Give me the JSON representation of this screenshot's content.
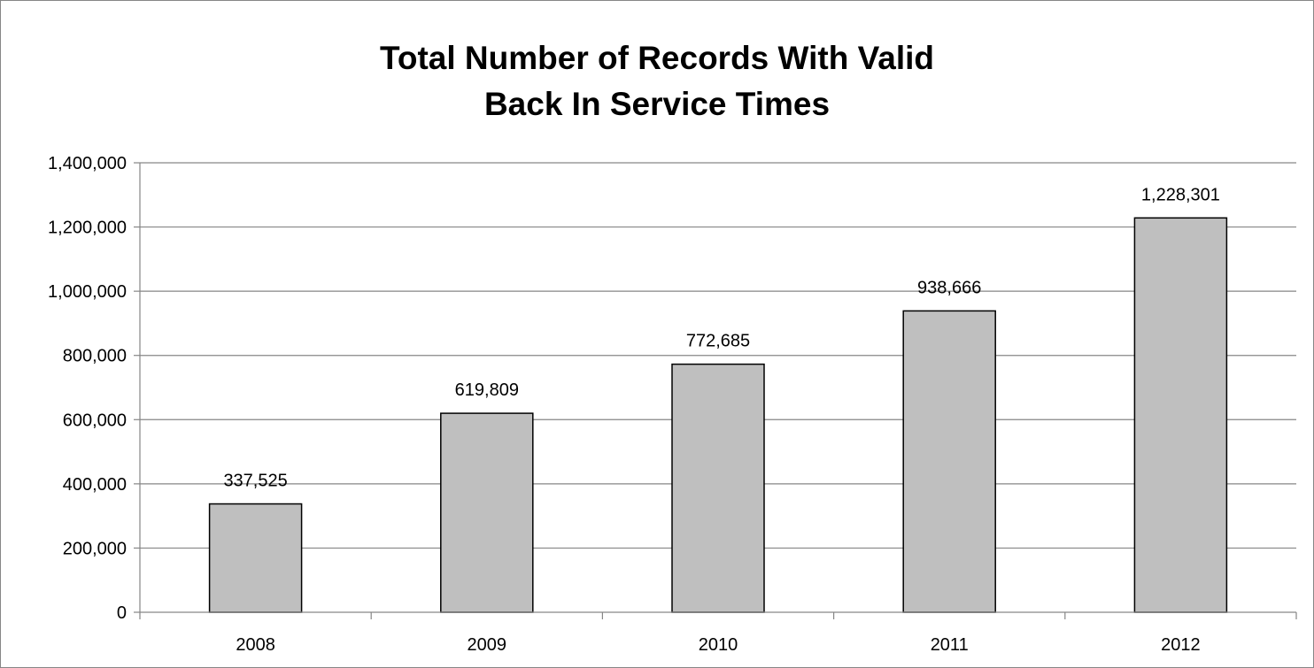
{
  "chart_data": {
    "type": "bar",
    "title": [
      "Total Number of Records With Valid",
      "Back In Service Times"
    ],
    "xlabel": "",
    "ylabel": "",
    "categories": [
      "2008",
      "2009",
      "2010",
      "2011",
      "2012"
    ],
    "values": [
      337525,
      619809,
      772685,
      938666,
      1228301
    ],
    "data_labels": [
      "337,525",
      "619,809",
      "772,685",
      "938,666",
      "1,228,301"
    ],
    "ylim": [
      0,
      1400000
    ],
    "yticks": [
      0,
      200000,
      400000,
      600000,
      800000,
      1000000,
      1200000,
      1400000
    ],
    "ytick_labels": [
      "0",
      "200,000",
      "400,000",
      "600,000",
      "800,000",
      "1,000,000",
      "1,200,000",
      "1,400,000"
    ],
    "grid": true,
    "legend": "none",
    "colors": {
      "bar_fill": "#bfbfbf",
      "bar_stroke": "#000000",
      "grid": "#868686",
      "axis": "#868686"
    }
  }
}
